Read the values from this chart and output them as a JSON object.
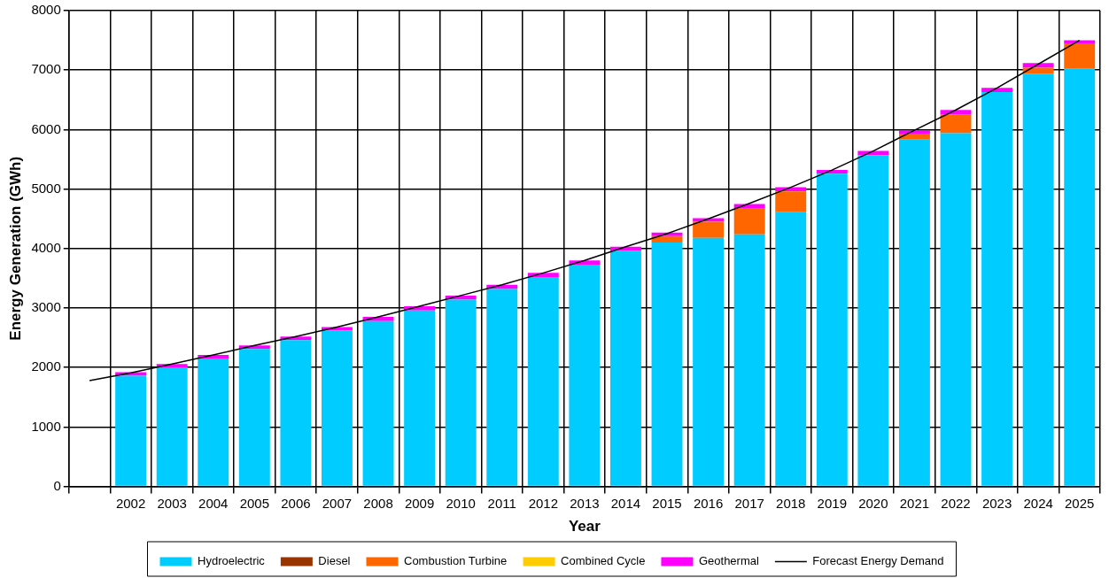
{
  "chart_data": {
    "type": "bar",
    "stacked": true,
    "xlabel": "Year",
    "ylabel": "Energy Generation (GWh)",
    "categories": [
      null,
      "2002",
      "2003",
      "2004",
      "2005",
      "2006",
      "2007",
      "2008",
      "2009",
      "2010",
      "2011",
      "2012",
      "2013",
      "2014",
      "2015",
      "2016",
      "2017",
      "2018",
      "2019",
      "2020",
      "2021",
      "2022",
      "2023",
      "2024",
      "2025"
    ],
    "series": [
      {
        "name": "Hydroelectric",
        "color": "#00ccff",
        "values": [
          null,
          1860,
          2000,
          2150,
          2310,
          2460,
          2620,
          2780,
          2960,
          3140,
          3320,
          3520,
          3730,
          3960,
          4100,
          4180,
          4240,
          4610,
          5260,
          5570,
          5830,
          5940,
          6630,
          6940,
          7020
        ]
      },
      {
        "name": "Diesel",
        "color": "#993300",
        "values": [
          null,
          0,
          0,
          0,
          0,
          0,
          0,
          0,
          0,
          0,
          0,
          0,
          0,
          0,
          0,
          0,
          0,
          0,
          0,
          0,
          0,
          0,
          0,
          0,
          0
        ]
      },
      {
        "name": "Combustion Turbine",
        "color": "#ff6600",
        "values": [
          null,
          0,
          0,
          0,
          0,
          0,
          0,
          0,
          0,
          0,
          0,
          0,
          0,
          0,
          110,
          270,
          430,
          350,
          0,
          0,
          100,
          310,
          0,
          100,
          420
        ]
      },
      {
        "name": "Combined Cycle",
        "color": "#ffcc00",
        "values": [
          null,
          0,
          0,
          0,
          0,
          0,
          0,
          0,
          0,
          0,
          0,
          0,
          0,
          0,
          0,
          0,
          0,
          0,
          0,
          0,
          0,
          0,
          0,
          0,
          0
        ]
      },
      {
        "name": "Geothermal",
        "color": "#ff00ff",
        "values": [
          null,
          60,
          60,
          60,
          60,
          60,
          60,
          70,
          70,
          70,
          70,
          70,
          70,
          70,
          60,
          60,
          80,
          70,
          60,
          70,
          60,
          80,
          70,
          80,
          60
        ]
      },
      {
        "name": "Forecast Energy Demand",
        "type": "line",
        "color": "#000000",
        "values": [
          1780,
          1910,
          2060,
          2210,
          2370,
          2520,
          2680,
          2850,
          3030,
          3210,
          3390,
          3590,
          3800,
          4030,
          4250,
          4500,
          4760,
          5030,
          5320,
          5640,
          5990,
          6330,
          6700,
          7100,
          7500
        ]
      }
    ],
    "ylim": [
      0,
      8000
    ],
    "yticks": [
      0,
      1000,
      2000,
      3000,
      4000,
      5000,
      6000,
      7000,
      8000
    ],
    "grid": true,
    "legend": "bottom",
    "marker": "none",
    "line_style": "solid"
  }
}
